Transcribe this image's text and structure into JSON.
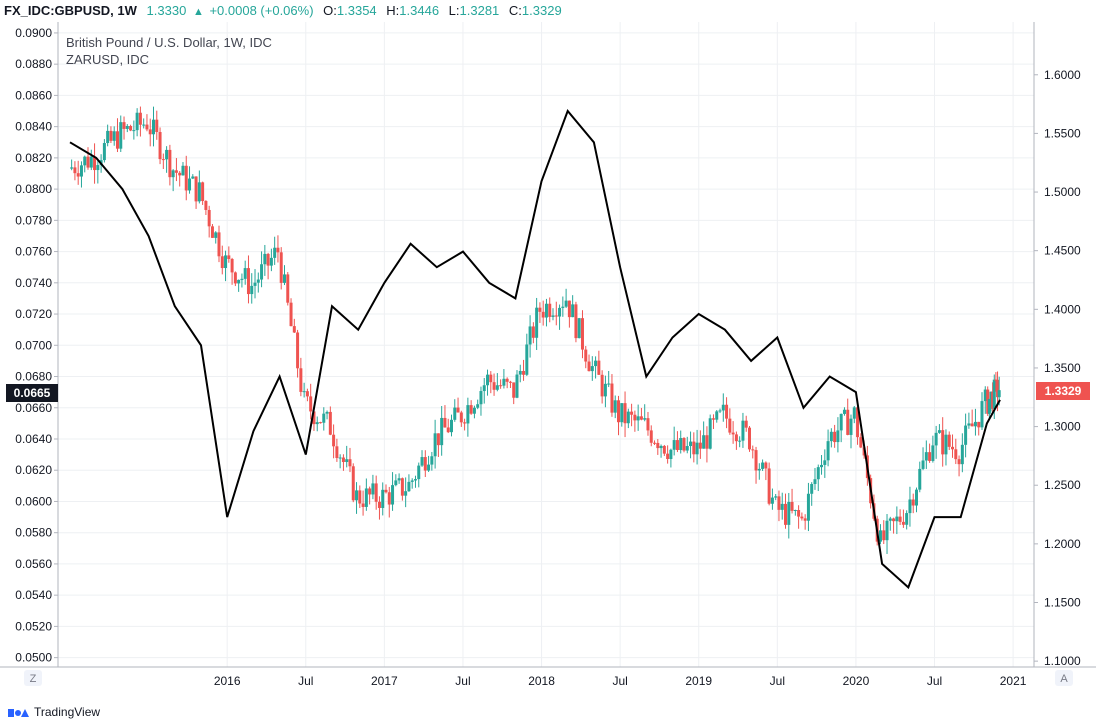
{
  "header": {
    "symbol": "FX_IDC:GBPUSD,",
    "timeframe": "1W",
    "last": "1.3330",
    "change": "+0.0008 (+0.06%)",
    "o_label": "O:",
    "o_value": "1.3354",
    "h_label": "H:",
    "h_value": "1.3446",
    "l_label": "L:",
    "l_value": "1.3281",
    "c_label": "C:",
    "c_value": "1.3329"
  },
  "footer": {
    "brand": "TradingView"
  },
  "buttons": {
    "z_label": "Z",
    "a_label": "A"
  },
  "colors": {
    "up": "#26a69a",
    "down": "#ef5350",
    "line": "#000000",
    "grid": "#eef0f3",
    "axis": "#b2b5be"
  },
  "chart_data": {
    "type": "line",
    "legend": [
      "British Pound / U.S. Dollar, 1W, IDC",
      "ZARUSD, IDC"
    ],
    "x_tick_labels": [
      "2016",
      "Jul",
      "2017",
      "Jul",
      "2018",
      "Jul",
      "2019",
      "Jul",
      "2020",
      "Jul",
      "2021"
    ],
    "x_range": [
      "2015-01",
      "2020-12"
    ],
    "left_axis": {
      "series": "ZARUSD",
      "range": [
        0.0494,
        0.0907
      ],
      "ticks": [
        "0.0500",
        "0.0520",
        "0.0540",
        "0.0560",
        "0.0580",
        "0.0600",
        "0.0620",
        "0.0640",
        "0.0660",
        "0.0680",
        "0.0700",
        "0.0720",
        "0.0740",
        "0.0760",
        "0.0780",
        "0.0800",
        "0.0820",
        "0.0840",
        "0.0860",
        "0.0880",
        "0.0900"
      ],
      "current_label": "0.0665"
    },
    "right_axis": {
      "series": "GBPUSD",
      "range": [
        1.095,
        1.645
      ],
      "ticks": [
        "1.1000",
        "1.1500",
        "1.2000",
        "1.2500",
        "1.3000",
        "1.3500",
        "1.4000",
        "1.4500",
        "1.5000",
        "1.5500",
        "1.6000"
      ],
      "current_label": "1.3329"
    },
    "series": [
      {
        "name": "ZARUSD, IDC",
        "style": "line",
        "x": [
          "2015-01",
          "2015-03",
          "2015-05",
          "2015-07",
          "2015-09",
          "2015-11",
          "2016-01",
          "2016-03",
          "2016-05",
          "2016-07",
          "2016-09",
          "2016-11",
          "2017-01",
          "2017-03",
          "2017-05",
          "2017-07",
          "2017-09",
          "2017-11",
          "2018-01",
          "2018-03",
          "2018-05",
          "2018-07",
          "2018-09",
          "2018-11",
          "2019-01",
          "2019-03",
          "2019-05",
          "2019-07",
          "2019-09",
          "2019-11",
          "2020-01",
          "2020-03",
          "2020-05",
          "2020-07",
          "2020-09",
          "2020-11",
          "2020-12"
        ],
        "values": [
          0.083,
          0.082,
          0.08,
          0.077,
          0.0725,
          0.07,
          0.059,
          0.0645,
          0.068,
          0.063,
          0.0725,
          0.071,
          0.074,
          0.0765,
          0.075,
          0.076,
          0.074,
          0.073,
          0.0805,
          0.085,
          0.083,
          0.075,
          0.068,
          0.0705,
          0.072,
          0.071,
          0.069,
          0.0705,
          0.066,
          0.068,
          0.067,
          0.056,
          0.0545,
          0.059,
          0.059,
          0.065,
          0.0665
        ]
      },
      {
        "name": "British Pound / U.S. Dollar, 1W, IDC",
        "style": "candlestick",
        "x": [
          "2015-01",
          "2015-03",
          "2015-05",
          "2015-07",
          "2015-09",
          "2015-11",
          "2016-01",
          "2016-03",
          "2016-05",
          "2016-07",
          "2016-09",
          "2016-11",
          "2017-01",
          "2017-03",
          "2017-05",
          "2017-07",
          "2017-09",
          "2017-11",
          "2018-01",
          "2018-03",
          "2018-05",
          "2018-07",
          "2018-09",
          "2018-11",
          "2019-01",
          "2019-03",
          "2019-05",
          "2019-07",
          "2019-09",
          "2019-11",
          "2020-01",
          "2020-03",
          "2020-05",
          "2020-07",
          "2020-09",
          "2020-11",
          "2020-12"
        ],
        "values": [
          1.52,
          1.53,
          1.55,
          1.56,
          1.52,
          1.5,
          1.44,
          1.42,
          1.45,
          1.32,
          1.3,
          1.24,
          1.24,
          1.25,
          1.29,
          1.31,
          1.34,
          1.33,
          1.4,
          1.41,
          1.35,
          1.31,
          1.3,
          1.28,
          1.28,
          1.31,
          1.29,
          1.23,
          1.22,
          1.29,
          1.31,
          1.2,
          1.23,
          1.29,
          1.28,
          1.32,
          1.3329
        ]
      }
    ]
  }
}
